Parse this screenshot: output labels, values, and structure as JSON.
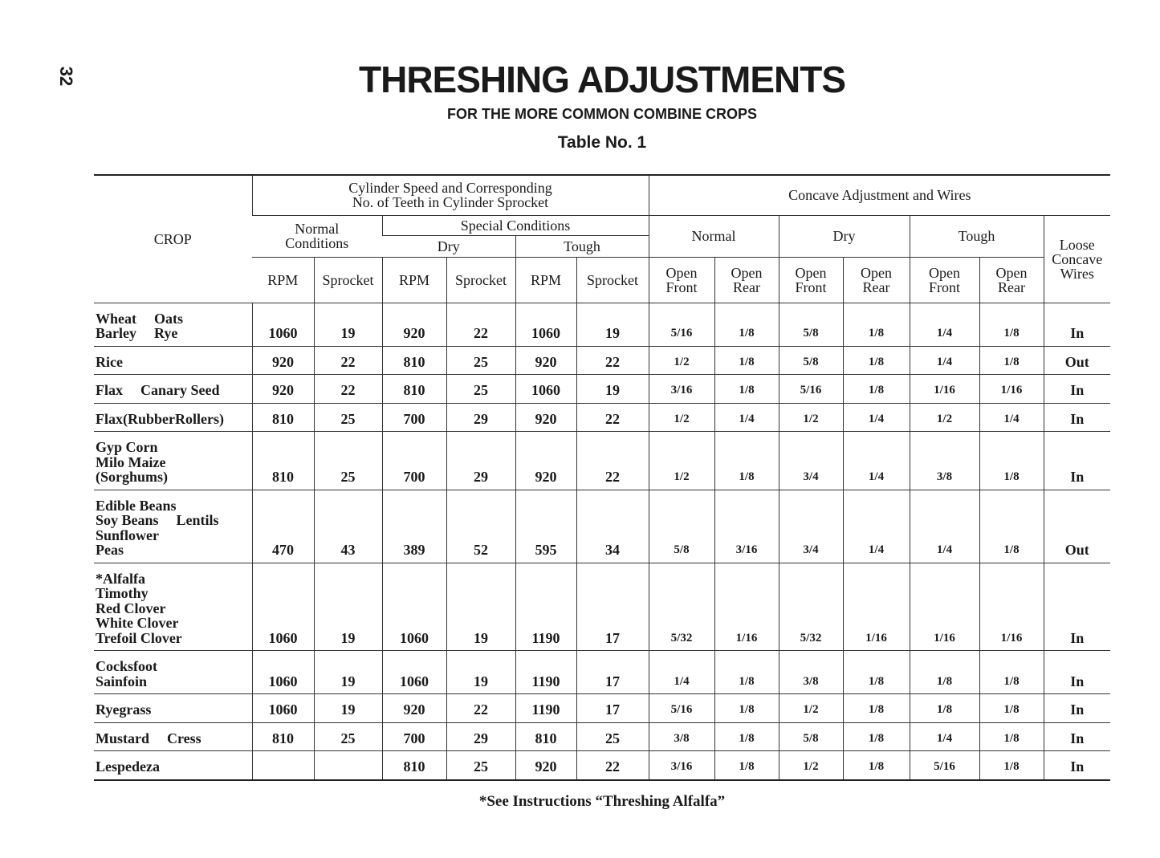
{
  "page_number": "32",
  "header": {
    "title": "THRESHING ADJUSTMENTS",
    "subtitle": "FOR THE MORE COMMON COMBINE CROPS",
    "table_label": "Table No. 1"
  },
  "table": {
    "columns": {
      "crop": "CROP",
      "cylinder": [
        "Cylinder Speed and Corresponding",
        "No. of Teeth in Cylinder Sprocket"
      ],
      "normal_conditions": [
        "Normal",
        "Conditions"
      ],
      "special_conditions": "Special Conditions",
      "dry": "Dry",
      "tough": "Tough",
      "rpm": "RPM",
      "sprocket": "Sprocket",
      "concave": "Concave Adjustment and Wires",
      "concave_normal": "Normal",
      "open_front": [
        "Open",
        "Front"
      ],
      "open_rear": [
        "Open",
        "Rear"
      ],
      "loose": [
        "Loose",
        "Concave",
        "Wires"
      ]
    },
    "rows": [
      {
        "crop": [
          [
            "Wheat",
            "Oats"
          ],
          [
            "Barley",
            "Rye"
          ]
        ],
        "values": [
          1060,
          19,
          920,
          22,
          1060,
          19,
          "5/16",
          "1/8",
          "5/8",
          "1/8",
          "1/4",
          "1/8",
          "In"
        ]
      },
      {
        "crop": [
          [
            "Rice"
          ]
        ],
        "values": [
          920,
          22,
          810,
          25,
          920,
          22,
          "1/2",
          "1/8",
          "5/8",
          "1/8",
          "1/4",
          "1/8",
          "Out"
        ]
      },
      {
        "crop": [
          [
            "Flax",
            "Canary Seed"
          ]
        ],
        "values": [
          920,
          22,
          810,
          25,
          1060,
          19,
          "3/16",
          "1/8",
          "5/16",
          "1/8",
          "1/16",
          "1/16",
          "In"
        ]
      },
      {
        "crop": [
          [
            "Flax(RubberRollers)"
          ]
        ],
        "values": [
          810,
          25,
          700,
          29,
          920,
          22,
          "1/2",
          "1/4",
          "1/2",
          "1/4",
          "1/2",
          "1/4",
          "In"
        ]
      },
      {
        "crop": [
          [
            "Gyp Corn"
          ],
          [
            "Milo Maize"
          ],
          [
            "(Sorghums)"
          ]
        ],
        "values": [
          810,
          25,
          700,
          29,
          920,
          22,
          "1/2",
          "1/8",
          "3/4",
          "1/4",
          "3/8",
          "1/8",
          "In"
        ]
      },
      {
        "crop": [
          [
            "Edible Beans"
          ],
          [
            "Soy Beans",
            "Lentils"
          ],
          [
            "Sunflower"
          ],
          [
            "Peas"
          ]
        ],
        "values": [
          470,
          43,
          389,
          52,
          595,
          34,
          "5/8",
          "3/16",
          "3/4",
          "1/4",
          "1/4",
          "1/8",
          "Out"
        ]
      },
      {
        "crop": [
          [
            "*Alfalfa"
          ],
          [
            "Timothy"
          ],
          [
            "Red Clover"
          ],
          [
            "White Clover"
          ],
          [
            "Trefoil Clover"
          ]
        ],
        "values": [
          1060,
          19,
          1060,
          19,
          1190,
          17,
          "5/32",
          "1/16",
          "5/32",
          "1/16",
          "1/16",
          "1/16",
          "In"
        ]
      },
      {
        "crop": [
          [
            "Cocksfoot"
          ],
          [
            "Sainfoin"
          ]
        ],
        "values": [
          1060,
          19,
          1060,
          19,
          1190,
          17,
          "1/4",
          "1/8",
          "3/8",
          "1/8",
          "1/8",
          "1/8",
          "In"
        ]
      },
      {
        "crop": [
          [
            "Ryegrass"
          ]
        ],
        "values": [
          1060,
          19,
          920,
          22,
          1190,
          17,
          "5/16",
          "1/8",
          "1/2",
          "1/8",
          "1/8",
          "1/8",
          "In"
        ]
      },
      {
        "crop": [
          [
            "Mustard",
            "Cress"
          ]
        ],
        "values": [
          810,
          25,
          700,
          29,
          810,
          25,
          "3/8",
          "1/8",
          "5/8",
          "1/8",
          "1/4",
          "1/8",
          "In"
        ]
      },
      {
        "crop": [
          [
            "Lespedeza"
          ]
        ],
        "values": [
          null,
          null,
          810,
          25,
          920,
          22,
          "3/16",
          "1/8",
          "1/2",
          "1/8",
          "5/16",
          "1/8",
          "In"
        ]
      }
    ]
  },
  "footnote": "*See Instructions “Threshing Alfalfa”"
}
